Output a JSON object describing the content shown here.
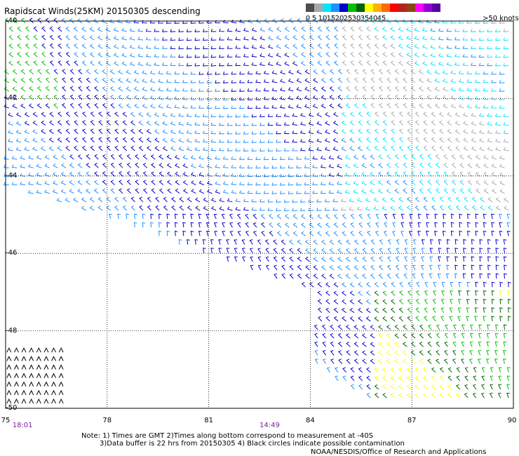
{
  "title": "Rapidscat Winds(25KM) 20150305 descending",
  "legend": {
    "units_label": ">50 knots",
    "bins": [
      {
        "label": "0",
        "color": "#4d4d4d"
      },
      {
        "label": "5",
        "color": "#a9a9a9"
      },
      {
        "label": "10",
        "color": "#00e5ff"
      },
      {
        "label": "15",
        "color": "#1e90ff"
      },
      {
        "label": "20",
        "color": "#0000cd"
      },
      {
        "label": "25",
        "color": "#00c000"
      },
      {
        "label": "30",
        "color": "#006400"
      },
      {
        "label": "35",
        "color": "#ffff00"
      },
      {
        "label": "40",
        "color": "#ffb000"
      },
      {
        "label": "45",
        "color": "#ff6a00"
      },
      {
        "label": "",
        "color": "#ff0000"
      },
      {
        "label": "",
        "color": "#b22222"
      },
      {
        "label": "",
        "color": "#8b4513"
      },
      {
        "label": "",
        "color": "#ff00ff"
      },
      {
        "label": "",
        "color": "#9400d3"
      },
      {
        "label": "",
        "color": "#5a00a0"
      }
    ],
    "ticks": [
      {
        "label": "0",
        "pos": 0
      },
      {
        "label": "5",
        "pos": 2
      },
      {
        "label": "10",
        "pos": 4
      },
      {
        "label": "15",
        "pos": 6
      },
      {
        "label": "20",
        "pos": 8
      },
      {
        "label": "25",
        "pos": 10
      },
      {
        "label": "30",
        "pos": 12
      },
      {
        "label": "35",
        "pos": 14
      },
      {
        "label": "40",
        "pos": 16
      },
      {
        "label": "45",
        "pos": 18
      }
    ]
  },
  "axes": {
    "lat_labels": [
      "-40",
      "-42",
      "-44",
      "-46",
      "-48",
      "-50"
    ],
    "lon_labels": [
      "75",
      "78",
      "81",
      "84",
      "87",
      "90"
    ],
    "time_labels": [
      {
        "label": "18:01",
        "lon": 75.5
      },
      {
        "label": "14:49",
        "lon": 82.8
      }
    ]
  },
  "notes": [
    "Note: 1) Times are GMT 2)Times along bottom correspond to measurement at -40S",
    "3)Data buffer is 22 hrs from 20150305 4) Black circles indicate possible contamination",
    "NOAA/NESDIS/Office of Research and Applications"
  ],
  "colors": {
    "grid": "#000000",
    "wind_black": "#000000"
  }
}
